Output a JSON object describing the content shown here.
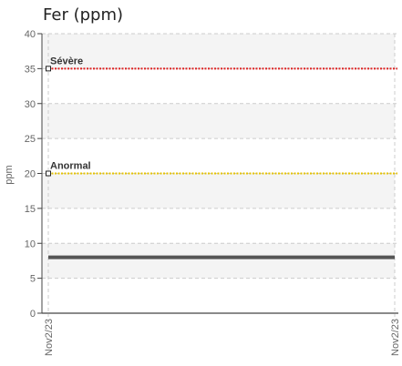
{
  "chart_data": {
    "title": "Fer (ppm)",
    "type": "line",
    "ylabel": "ppm",
    "ylim": [
      0,
      40
    ],
    "yticks": [
      0,
      5,
      10,
      15,
      20,
      25,
      30,
      35,
      40
    ],
    "x_labels": [
      "Nov2/23",
      "Nov2/23"
    ],
    "grid": true,
    "alternating_bands": true,
    "series": [
      {
        "values": [
          8,
          8
        ],
        "color": "#555555"
      }
    ],
    "thresholds": [
      {
        "label": "Sévère",
        "value": 35,
        "color": "#dd2222"
      },
      {
        "label": "Anormal",
        "value": 20,
        "color": "#e6c200"
      }
    ]
  }
}
